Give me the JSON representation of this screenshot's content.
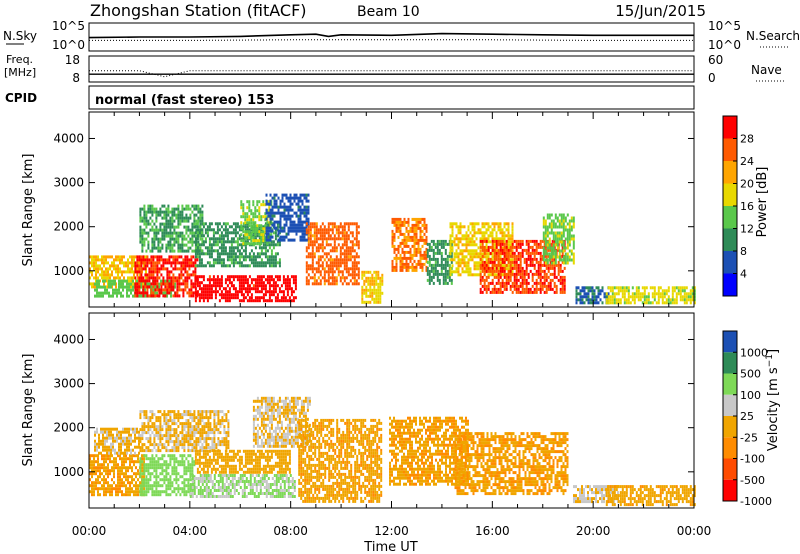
{
  "header": {
    "station": "Zhongshan Station (fitACF)",
    "beam": "Beam 10",
    "date": "15/Jun/2015"
  },
  "colors": {
    "axis": "#000000",
    "power_scale": [
      "#0000ff",
      "#1c50b4",
      "#2e8b57",
      "#5ac84b",
      "#e8d800",
      "#ffa500",
      "#ff5a00",
      "#ff0000"
    ],
    "velocity_scale": [
      "#ff0000",
      "#ff4b00",
      "#ff8c00",
      "#f0a500",
      "#c8c8c8",
      "#7ed957",
      "#2e8b57",
      "#1c50b4"
    ]
  },
  "chart_data": [
    {
      "type": "line",
      "id": "nsky-nsearch",
      "left_label": "N.Sky",
      "right_label": "N.Search",
      "ylim": [
        0,
        5
      ],
      "y_scale": "log",
      "left_ticks": [
        "10^5",
        "10^0"
      ],
      "right_ticks": [
        "10^5",
        "10^0"
      ],
      "series": [
        {
          "name": "N.Sky",
          "style": "solid",
          "x": [
            0,
            2,
            4,
            6,
            8,
            9,
            9.5,
            10,
            12,
            14,
            16,
            18,
            20,
            22,
            24
          ],
          "y": [
            2.4,
            2.5,
            2.5,
            2.6,
            2.9,
            3.0,
            2.6,
            2.9,
            2.8,
            3.1,
            3.0,
            2.9,
            2.8,
            2.8,
            2.8
          ]
        },
        {
          "name": "N.Search",
          "style": "dotted",
          "x": [
            0,
            4,
            8,
            12,
            16,
            20,
            24
          ],
          "y": [
            1.9,
            1.9,
            2.0,
            2.0,
            2.0,
            1.9,
            1.9
          ]
        }
      ]
    },
    {
      "type": "line",
      "id": "freq-nave",
      "left_label": "Freq. [MHz]",
      "right_label": "Nave",
      "left_ticks": [
        "18",
        "8"
      ],
      "right_ticks": [
        "60",
        "0"
      ],
      "ylim": [
        8,
        18
      ],
      "series": [
        {
          "name": "Freq.",
          "style": "solid",
          "x": [
            0,
            24
          ],
          "y": [
            11,
            11
          ]
        },
        {
          "name": "Nave",
          "style": "dotted",
          "x": [
            0,
            2,
            3,
            4,
            6,
            24
          ],
          "y": [
            26,
            26,
            12,
            26,
            26,
            26
          ]
        }
      ]
    },
    {
      "type": "table",
      "id": "cpid",
      "label": "CPID",
      "value": "normal (fast stereo) 153"
    },
    {
      "type": "heatmap",
      "id": "power",
      "ylabel": "Slant Range [km]",
      "yticks": [
        1000,
        2000,
        3000,
        4000
      ],
      "ylim": [
        180,
        4600
      ],
      "xlim": [
        0,
        24
      ],
      "colorbar": {
        "label": "Power [dB]",
        "ticks": [
          "4",
          "8",
          "12",
          "16",
          "20",
          "24",
          "28"
        ],
        "range": [
          0,
          30
        ]
      },
      "bands": [
        {
          "x0": 0.0,
          "x1": 2.3,
          "r0": 650,
          "r1": 1350,
          "value": 19
        },
        {
          "x0": 0.2,
          "x1": 3.5,
          "r0": 450,
          "r1": 800,
          "value": 13
        },
        {
          "x0": 2.0,
          "x1": 4.5,
          "r0": 1450,
          "r1": 2500,
          "value": 11
        },
        {
          "x0": 1.8,
          "x1": 4.3,
          "r0": 450,
          "r1": 1350,
          "value": 27
        },
        {
          "x0": 4.2,
          "x1": 7.6,
          "r0": 1100,
          "r1": 2100,
          "value": 10
        },
        {
          "x0": 4.2,
          "x1": 8.2,
          "r0": 320,
          "r1": 900,
          "value": 28
        },
        {
          "x0": 6.0,
          "x1": 7.2,
          "r0": 1600,
          "r1": 2600,
          "value": 14
        },
        {
          "x0": 7.0,
          "x1": 8.7,
          "r0": 1700,
          "r1": 2750,
          "value": 6
        },
        {
          "x0": 8.6,
          "x1": 10.7,
          "r0": 700,
          "r1": 2100,
          "value": 24
        },
        {
          "x0": 10.8,
          "x1": 11.6,
          "r0": 300,
          "r1": 1000,
          "value": 18
        },
        {
          "x0": 12.0,
          "x1": 13.4,
          "r0": 1000,
          "r1": 2200,
          "value": 23
        },
        {
          "x0": 13.4,
          "x1": 14.4,
          "r0": 700,
          "r1": 1700,
          "value": 10
        },
        {
          "x0": 14.3,
          "x1": 16.8,
          "r0": 900,
          "r1": 2100,
          "value": 18
        },
        {
          "x0": 15.5,
          "x1": 18.9,
          "r0": 500,
          "r1": 1700,
          "value": 26
        },
        {
          "x0": 18.0,
          "x1": 19.2,
          "r0": 1200,
          "r1": 2300,
          "value": 14
        },
        {
          "x0": 19.3,
          "x1": 20.6,
          "r0": 300,
          "r1": 650,
          "value": 7
        },
        {
          "x0": 20.5,
          "x1": 24.0,
          "r0": 300,
          "r1": 650,
          "value": 16
        }
      ]
    },
    {
      "type": "heatmap",
      "id": "velocity",
      "ylabel": "Slant Range [km]",
      "yticks": [
        1000,
        2000,
        3000,
        4000
      ],
      "ylim": [
        180,
        4600
      ],
      "xlim": [
        0,
        24
      ],
      "xlabel": "Time UT",
      "xticks": [
        "00:00",
        "04:00",
        "08:00",
        "12:00",
        "16:00",
        "20:00",
        "00:00"
      ],
      "colorbar": {
        "label": "Velocity [m s^-1]",
        "ticks": [
          "1000",
          "500",
          "100",
          "25",
          "-25",
          "-100",
          "-500",
          "-1000"
        ],
        "range": [
          -1200,
          1200
        ]
      },
      "bands": [
        {
          "x0": 0.0,
          "x1": 2.2,
          "r0": 450,
          "r1": 1400,
          "value": -250
        },
        {
          "x0": 0.2,
          "x1": 2.0,
          "r0": 1450,
          "r1": 2000,
          "value": -40
        },
        {
          "x0": 2.0,
          "x1": 4.2,
          "r0": 450,
          "r1": 1400,
          "value": 450
        },
        {
          "x0": 2.0,
          "x1": 5.5,
          "r0": 1450,
          "r1": 2400,
          "value": -50
        },
        {
          "x0": 4.0,
          "x1": 8.2,
          "r0": 450,
          "r1": 950,
          "value": 300
        },
        {
          "x0": 4.2,
          "x1": 8.0,
          "r0": 1000,
          "r1": 1500,
          "value": -150
        },
        {
          "x0": 6.5,
          "x1": 8.8,
          "r0": 1600,
          "r1": 2700,
          "value": 0
        },
        {
          "x0": 8.3,
          "x1": 11.6,
          "r0": 350,
          "r1": 2200,
          "value": -220
        },
        {
          "x0": 11.9,
          "x1": 15.0,
          "r0": 700,
          "r1": 2250,
          "value": -250
        },
        {
          "x0": 14.5,
          "x1": 19.0,
          "r0": 500,
          "r1": 1900,
          "value": -260
        },
        {
          "x0": 19.2,
          "x1": 21.0,
          "r0": 300,
          "r1": 700,
          "value": 60
        },
        {
          "x0": 20.5,
          "x1": 24.0,
          "r0": 250,
          "r1": 700,
          "value": -180
        }
      ]
    }
  ]
}
